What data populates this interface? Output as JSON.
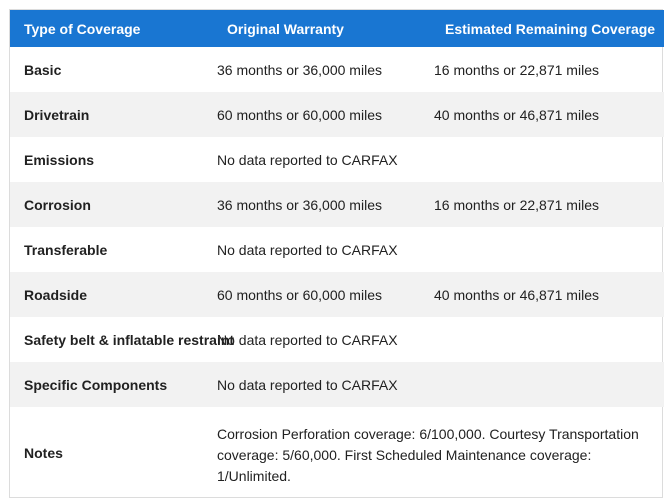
{
  "table": {
    "headers": [
      "Type of Coverage",
      "Original Warranty",
      "Estimated Remaining Coverage"
    ],
    "rows": [
      {
        "type": "Basic",
        "original": "36 months or 36,000 miles",
        "remaining": "16 months or 22,871 miles"
      },
      {
        "type": "Drivetrain",
        "original": "60 months or 60,000 miles",
        "remaining": "40 months or 46,871 miles"
      },
      {
        "type": "Emissions",
        "original": "No data reported to CARFAX",
        "remaining": ""
      },
      {
        "type": "Corrosion",
        "original": "36 months or 36,000 miles",
        "remaining": "16 months or 22,871 miles"
      },
      {
        "type": "Transferable",
        "original": "No data reported to CARFAX",
        "remaining": ""
      },
      {
        "type": "Roadside",
        "original": "60 months or 60,000 miles",
        "remaining": "40 months or 46,871 miles"
      },
      {
        "type": "Safety belt & inflatable restraint",
        "original": "No data reported to CARFAX",
        "remaining": ""
      },
      {
        "type": "Specific Components",
        "original": "No data reported to CARFAX",
        "remaining": ""
      }
    ],
    "notes": {
      "label": "Notes",
      "text": "Corrosion Perforation coverage: 6/100,000. Courtesy Transportation coverage: 5/60,000. First Scheduled Maintenance coverage: 1/Unlimited."
    }
  },
  "colors": {
    "header_bg": "#1976d2",
    "header_text": "#ffffff",
    "stripe_bg": "#f2f2f2"
  }
}
